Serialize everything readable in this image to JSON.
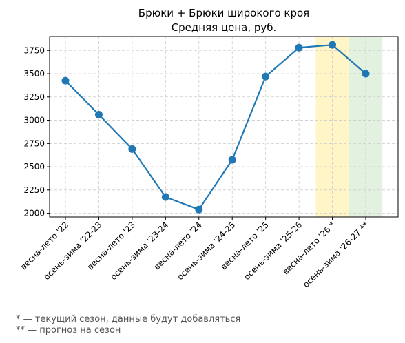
{
  "chart_data": {
    "type": "line",
    "title": "Брюки + Брюки широкого кроя",
    "subtitle": "Средняя цена, руб.",
    "xlabel": "",
    "ylabel": "",
    "categories": [
      "весна-лето '22",
      "осень-зима '22-23",
      "весна-лето '23",
      "осень-зима '23-24",
      "весна-лето '24",
      "осень-зима '24-25",
      "весна-лето '25",
      "осень-зима '25-26",
      "весна-лето '26 *",
      "осень-зима '26-27 **"
    ],
    "series": [
      {
        "values": [
          3425,
          3060,
          2690,
          2175,
          2040,
          2575,
          3470,
          3780,
          3810,
          3500
        ],
        "color": "#1f77b4"
      }
    ],
    "ylim": [
      1960,
      3900
    ],
    "yticks": [
      2000,
      2250,
      2500,
      2750,
      3000,
      3250,
      3500,
      3750
    ],
    "grid": true,
    "highlights": [
      {
        "category_index": 8,
        "color": "#fff2b3"
      },
      {
        "category_index": 9,
        "color": "#d9ecd5"
      }
    ]
  },
  "footnotes": [
    "* — текущий сезон, данные будут добавляться",
    "** — прогноз на сезон"
  ]
}
